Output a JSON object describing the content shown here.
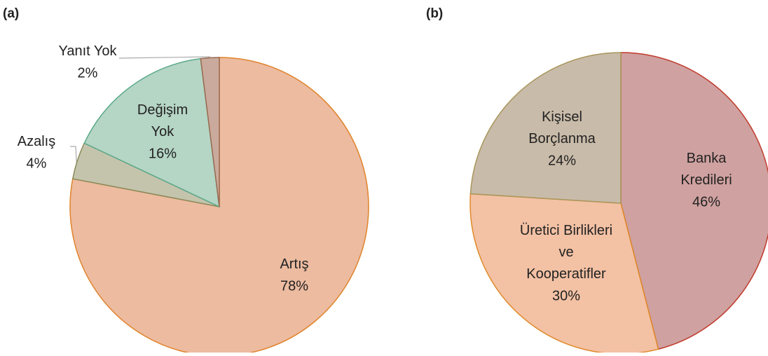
{
  "chart_data": [
    {
      "type": "pie",
      "title": "(a)",
      "categories": [
        "Artış",
        "Azalış",
        "Değişim\nYok",
        "Yanıt Yok"
      ],
      "values": [
        78,
        4,
        16,
        2
      ],
      "value_labels": [
        "78%",
        "4%",
        "16%",
        "2%"
      ],
      "colors": [
        "#ecbba0",
        "#c4c4ad",
        "#b5d5c5",
        "#c9aa9c"
      ],
      "edge_colors": [
        "#e0832a",
        "#8a8a5a",
        "#5aa98a",
        "#9a6a50"
      ]
    },
    {
      "type": "pie",
      "title": "(b)",
      "categories": [
        "Banka\nKredileri",
        "Üretici Birlikleri\nve\nKooperatifler",
        "Kişisel\nBorçlanma"
      ],
      "values": [
        46,
        30,
        24
      ],
      "value_labels": [
        "46%",
        "30%",
        "24%"
      ],
      "colors": [
        "#cfa1a0",
        "#f3c1a4",
        "#c9bba9"
      ],
      "edge_colors": [
        "#c0392b",
        "#e08a2a",
        "#a8965a"
      ]
    }
  ]
}
